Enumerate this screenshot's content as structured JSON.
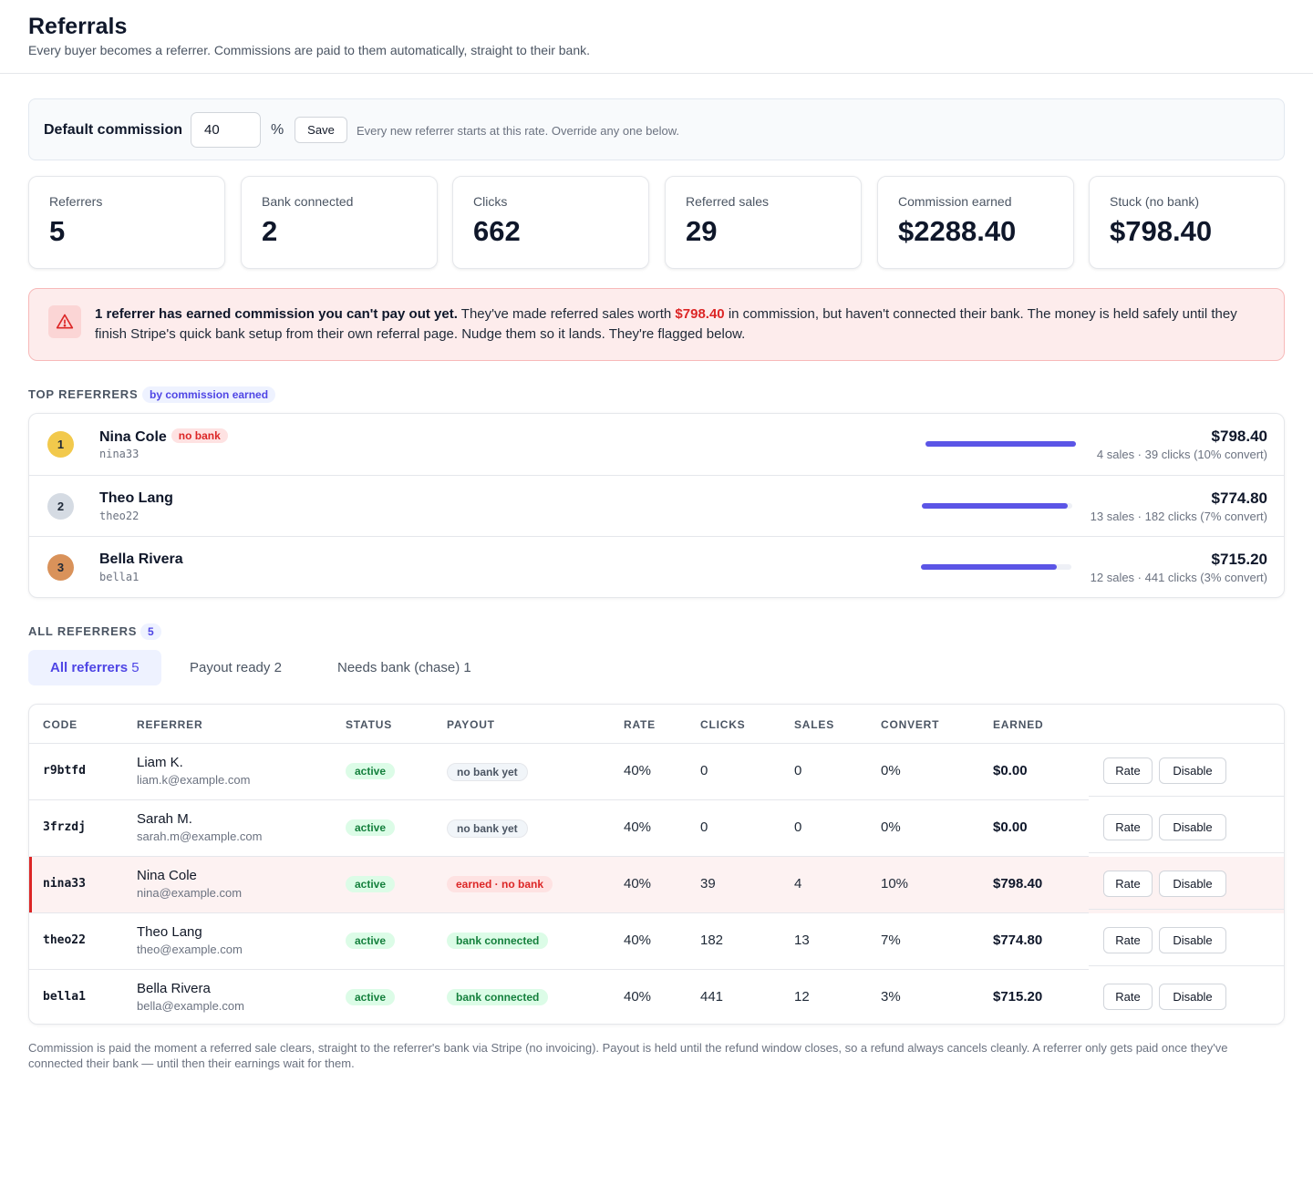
{
  "header": {
    "title": "Referrals",
    "subtitle": "Every buyer becomes a referrer. Commissions are paid to them automatically, straight to their bank."
  },
  "commission": {
    "label": "Default commission",
    "value": "40",
    "unit": "%",
    "save_label": "Save",
    "hint": "Every new referrer starts at this rate. Override any one below."
  },
  "stats": [
    {
      "label": "Referrers",
      "value": "5"
    },
    {
      "label": "Bank connected",
      "value": "2"
    },
    {
      "label": "Clicks",
      "value": "662"
    },
    {
      "label": "Referred sales",
      "value": "29"
    },
    {
      "label": "Commission earned",
      "value": "$2288.40"
    },
    {
      "label": "Stuck (no bank)",
      "value": "$798.40"
    }
  ],
  "alert": {
    "headline": "1 referrer has earned commission you can't pay out yet.",
    "text_before": "They've made referred sales worth",
    "amount": "$798.40",
    "text_after": "in commission, but haven't connected their bank. The money is held safely until they finish Stripe's quick bank setup from their own referral page. Nudge them so it lands. They're flagged below.",
    "color": "#dc2626"
  },
  "top_referrers": {
    "label": "TOP REFERRERS",
    "sort_badge": "by commission earned",
    "items": [
      {
        "rank": "1",
        "name": "Nina Cole",
        "badge": "no bank",
        "code": "nina33",
        "earned": "$798.40",
        "meta": "4 sales · 39 clicks (10% convert)",
        "share": 1.0
      },
      {
        "rank": "2",
        "name": "Theo Lang",
        "badge": "",
        "code": "theo22",
        "earned": "$774.80",
        "meta": "13 sales · 182 clicks (7% convert)",
        "share": 0.97
      },
      {
        "rank": "3",
        "name": "Bella Rivera",
        "badge": "",
        "code": "bella1",
        "earned": "$715.20",
        "meta": "12 sales · 441 clicks (3% convert)",
        "share": 0.9
      }
    ]
  },
  "all_referrers": {
    "label": "ALL REFERRERS",
    "count": "5"
  },
  "tabs": [
    {
      "label": "All referrers",
      "count": "5",
      "active": true
    },
    {
      "label": "Payout ready",
      "count": "2",
      "active": false
    },
    {
      "label": "Needs bank (chase)",
      "count": "1",
      "active": false
    }
  ],
  "table": {
    "columns": [
      "CODE",
      "REFERRER",
      "STATUS",
      "PAYOUT",
      "RATE",
      "CLICKS",
      "SALES",
      "CONVERT",
      "EARNED"
    ],
    "action_labels": {
      "rate": "Rate",
      "disable": "Disable"
    },
    "rows": [
      {
        "code": "r9btfd",
        "name": "Liam K.",
        "email": "liam.k@example.com",
        "status": "active",
        "payout": "no bank yet",
        "payout_kind": "nobank",
        "rate": "40%",
        "clicks": "0",
        "sales": "0",
        "convert": "0%",
        "earned": "$0.00",
        "flagged": false
      },
      {
        "code": "3frzdj",
        "name": "Sarah M.",
        "email": "sarah.m@example.com",
        "status": "active",
        "payout": "no bank yet",
        "payout_kind": "nobank",
        "rate": "40%",
        "clicks": "0",
        "sales": "0",
        "convert": "0%",
        "earned": "$0.00",
        "flagged": false
      },
      {
        "code": "nina33",
        "name": "Nina Cole",
        "email": "nina@example.com",
        "status": "active",
        "payout": "earned · no bank",
        "payout_kind": "earned",
        "rate": "40%",
        "clicks": "39",
        "sales": "4",
        "convert": "10%",
        "earned": "$798.40",
        "flagged": true
      },
      {
        "code": "theo22",
        "name": "Theo Lang",
        "email": "theo@example.com",
        "status": "active",
        "payout": "bank connected",
        "payout_kind": "connected",
        "rate": "40%",
        "clicks": "182",
        "sales": "13",
        "convert": "7%",
        "earned": "$774.80",
        "flagged": false
      },
      {
        "code": "bella1",
        "name": "Bella Rivera",
        "email": "bella@example.com",
        "status": "active",
        "payout": "bank connected",
        "payout_kind": "connected",
        "rate": "40%",
        "clicks": "441",
        "sales": "12",
        "convert": "3%",
        "earned": "$715.20",
        "flagged": false
      }
    ]
  },
  "footnote": "Commission is paid the moment a referred sale clears, straight to the referrer's bank via Stripe (no invoicing). Payout is held until the refund window closes, so a refund always cancels cleanly. A referrer only gets paid once they've connected their bank — until then their earnings wait for them.",
  "colors": {
    "accent": "#4f46e5",
    "bar": "#5b55e6",
    "danger": "#dc2626",
    "success": "#15803d",
    "gold": "#f2c94c",
    "silver": "#d5dbe3",
    "bronze": "#d9925a"
  }
}
